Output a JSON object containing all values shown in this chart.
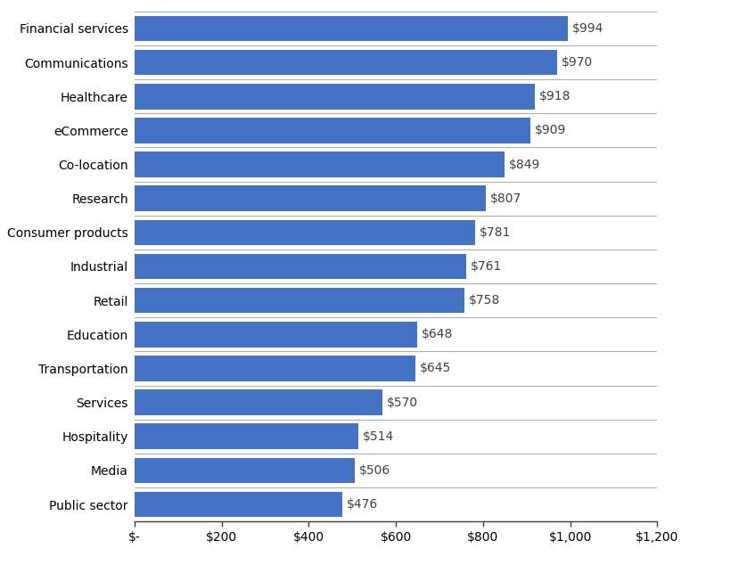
{
  "categories": [
    "Public sector",
    "Media",
    "Hospitality",
    "Services",
    "Transportation",
    "Education",
    "Retail",
    "Industrial",
    "Consumer products",
    "Research",
    "Co-location",
    "eCommerce",
    "Healthcare",
    "Communications",
    "Financial services"
  ],
  "values": [
    476,
    506,
    514,
    570,
    645,
    648,
    758,
    761,
    781,
    807,
    849,
    909,
    918,
    970,
    994
  ],
  "labels": [
    "$476",
    "$506",
    "$514",
    "$570",
    "$645",
    "$648",
    "$758",
    "$761",
    "$781",
    "$807",
    "$849",
    "$909",
    "$918",
    "$970",
    "$994"
  ],
  "bar_color": "#4472C4",
  "xlim": [
    0,
    1200
  ],
  "xticks": [
    0,
    200,
    400,
    600,
    800,
    1000,
    1200
  ],
  "xticklabels": [
    "$-",
    "$200",
    "$400",
    "$600",
    "$800",
    "$1,000",
    "$1,200"
  ],
  "label_fontsize": 10,
  "tick_fontsize": 10,
  "background_color": "#ffffff",
  "grid_color": "#b0b0b0",
  "bar_height": 0.75,
  "label_color": "#404040",
  "figsize": [
    8.38,
    6.43
  ],
  "dpi": 100
}
